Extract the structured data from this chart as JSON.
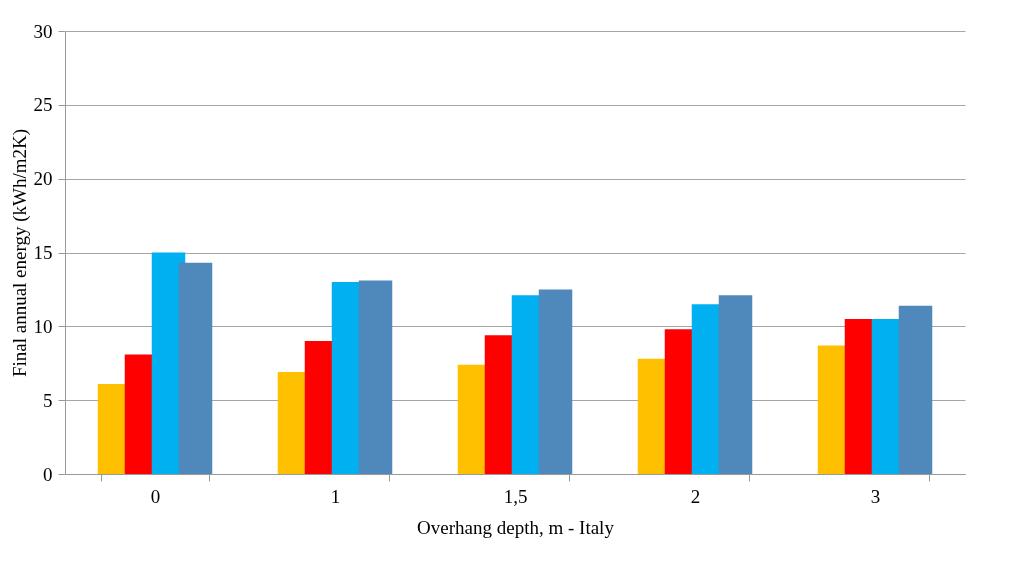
{
  "chart_data": {
    "type": "bar",
    "xlabel": "Overhang depth, m - Italy",
    "ylabel": "Final annual energy (kWh/m2K)",
    "categories": [
      "0",
      "1",
      "1,5",
      "2",
      "3"
    ],
    "series": [
      {
        "color": "#ffc000",
        "values": [
          6.1,
          6.9,
          7.4,
          7.8,
          8.7
        ]
      },
      {
        "color": "#ff0000",
        "values": [
          8.1,
          9.0,
          9.4,
          9.8,
          10.5
        ]
      },
      {
        "color": "#00b0f0",
        "values": [
          15.0,
          13.0,
          12.1,
          11.5,
          10.5
        ]
      },
      {
        "color": "#4f88bb",
        "values": [
          14.3,
          13.1,
          12.5,
          12.1,
          11.4
        ]
      }
    ],
    "ylim": [
      0,
      30
    ],
    "yticks": [
      0,
      5,
      10,
      15,
      20,
      25,
      30
    ],
    "grid": "y",
    "legend": false
  }
}
